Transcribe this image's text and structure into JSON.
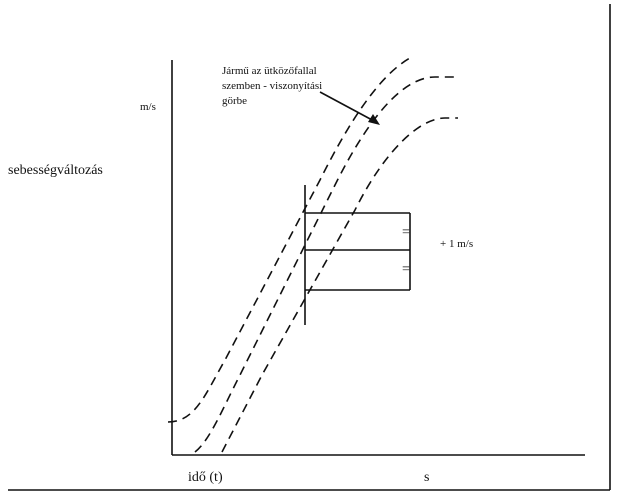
{
  "annotation": {
    "lines": [
      "Jármű az ütközőfallal",
      "szemben - viszonyítási",
      "görbe"
    ]
  },
  "y_unit": "m/s",
  "y_label": "sebességváltozás",
  "equal_marks": [
    "=",
    "="
  ],
  "step_label": "+ 1 m/s",
  "x_label": "idő (t)",
  "x_unit": "s"
}
